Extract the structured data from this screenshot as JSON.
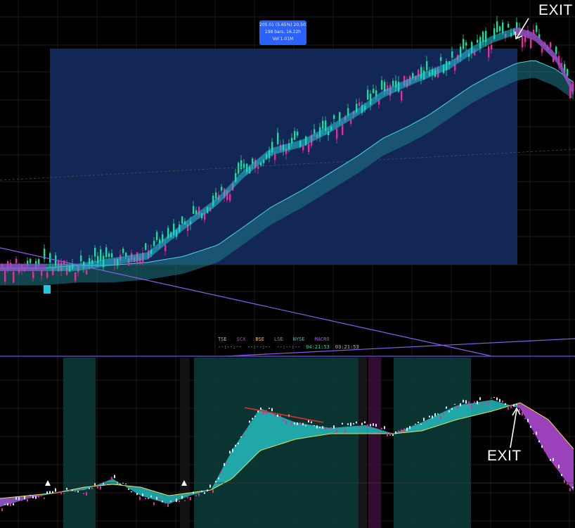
{
  "annotations": {
    "exit_top": "EXIT",
    "exit_bottom": "EXIT"
  },
  "tooltip": {
    "line1": "205.01 (5.65%) 20,501",
    "line2": "198 bars, 16.22h",
    "line3": "Vol 1.01M"
  },
  "sessions": {
    "labels": [
      {
        "text": "TSE",
        "color": "#f5a623"
      },
      {
        "text": "SCX",
        "color": "#c040d0"
      },
      {
        "text": "BSE",
        "color": "#f0c040"
      },
      {
        "text": "LSE",
        "color": "#3c9cff"
      },
      {
        "text": "NYSE",
        "color": "#3cc0c0"
      },
      {
        "text": "MACRO",
        "color": "#9a5cff"
      }
    ],
    "times": [
      "--:--:--",
      "--:--:--",
      "--:--:--",
      "04:21:53",
      "03:21:53"
    ]
  },
  "colors": {
    "bull": "#26d6a0",
    "bear": "#e0309a",
    "ribbon_bull": "#26c6da",
    "ribbon_bear": "#b030c0",
    "selection": "#142a5c",
    "trendline": "#8a5cf0",
    "divider": "#6040c0"
  },
  "chart_data": [
    {
      "type": "candlestick",
      "panel": "price",
      "title": "",
      "xlabel": "",
      "ylabel": "",
      "series": [
        {
          "name": "",
          "type": "candles"
        },
        {
          "name": "",
          "type": "ribbon",
          "values": [
            0.12,
            0.12,
            0.12,
            0.14,
            0.16,
            0.26,
            0.35,
            0.44,
            0.52,
            0.55,
            0.6,
            0.66,
            0.72,
            0.76,
            0.79,
            0.82,
            0.87,
            0.91,
            0.94,
            0.92,
            0.85,
            0.72
          ]
        },
        {
          "name": "",
          "type": "band",
          "values": [
            0.06,
            0.06,
            0.07,
            0.07,
            0.08,
            0.1,
            0.14,
            0.2,
            0.27,
            0.33,
            0.39,
            0.45,
            0.51,
            0.55,
            0.59,
            0.64,
            0.69,
            0.73,
            0.77,
            0.78,
            0.75,
            0.7
          ]
        }
      ],
      "x": [
        0,
        60,
        110,
        160,
        210,
        260,
        310,
        345,
        385,
        430,
        470,
        510,
        545,
        580,
        610,
        640,
        670,
        700,
        735,
        760,
        790,
        818
      ],
      "grid": true,
      "ylim": [
        0,
        1
      ]
    },
    {
      "type": "area",
      "panel": "indicator",
      "title": "",
      "xlabel": "",
      "ylabel": "",
      "series": [
        {
          "name": "",
          "values": [
            0.1,
            0.16,
            0.2,
            0.22,
            0.3,
            0.18,
            0.12,
            0.18,
            0.22,
            0.5,
            0.8,
            0.7,
            0.66,
            0.68,
            0.62,
            0.7,
            0.82,
            0.86,
            0.8,
            0.45,
            0.2
          ]
        },
        {
          "name": "",
          "values": [
            0.16,
            0.18,
            0.2,
            0.24,
            0.26,
            0.24,
            0.18,
            0.2,
            0.22,
            0.3,
            0.5,
            0.58,
            0.62,
            0.62,
            0.62,
            0.64,
            0.72,
            0.78,
            0.84,
            0.72,
            0.5
          ]
        }
      ],
      "x": [
        0,
        40,
        80,
        120,
        160,
        200,
        240,
        270,
        300,
        330,
        370,
        420,
        470,
        520,
        560,
        600,
        650,
        700,
        740,
        780,
        818
      ],
      "grid": true,
      "ylim": [
        0,
        1
      ]
    }
  ]
}
